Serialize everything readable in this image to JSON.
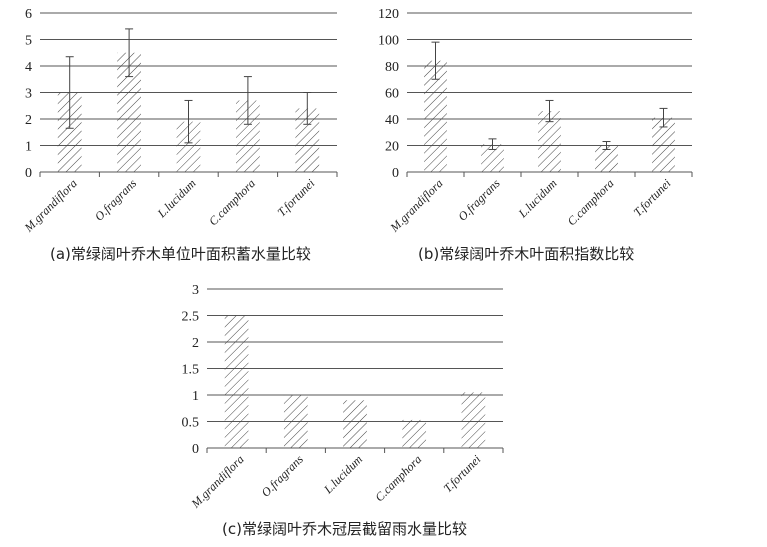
{
  "chart_data": [
    {
      "type": "bar",
      "caption": "(a)常绿阔叶乔木单位叶面积蓄水量比较",
      "categories": [
        "M.grandiflora",
        "O.fragrans",
        "L.lucidum",
        "C.camphora",
        "T.fortunei"
      ],
      "values": [
        3.0,
        4.5,
        1.9,
        2.7,
        2.4
      ],
      "error": [
        1.35,
        0.9,
        0.8,
        0.9,
        0.6
      ],
      "yticks": [
        "0",
        "1",
        "2",
        "3",
        "4",
        "5",
        "6"
      ],
      "ylim": [
        0,
        6
      ],
      "grid": true
    },
    {
      "type": "bar",
      "caption": "(b)常绿阔叶乔木叶面积指数比较",
      "categories": [
        "M.grandiflora",
        "O.fragrans",
        "L.lucidum",
        "C.camphora",
        "T.fortunei"
      ],
      "values": [
        84,
        21,
        46,
        20,
        41
      ],
      "error": [
        14,
        4,
        8,
        3,
        7
      ],
      "yticks": [
        "0",
        "20",
        "40",
        "60",
        "80",
        "100",
        "120"
      ],
      "ylim": [
        0,
        120
      ],
      "grid": true
    },
    {
      "type": "bar",
      "caption": "(c)常绿阔叶乔木冠层截留雨水量比较",
      "categories": [
        "M.grandiflora",
        "O.fragrans",
        "L.lucidum",
        "C.camphora",
        "T.fortunei"
      ],
      "values": [
        2.5,
        1.0,
        0.9,
        0.53,
        1.05
      ],
      "yticks": [
        "0",
        "0.5",
        "1",
        "1.5",
        "2",
        "2.5",
        "3"
      ],
      "ylim": [
        0,
        3
      ],
      "grid": true
    }
  ],
  "colors": {
    "bar_hatch": "#444444",
    "grid": "#555555",
    "error_bar": "#444444"
  }
}
